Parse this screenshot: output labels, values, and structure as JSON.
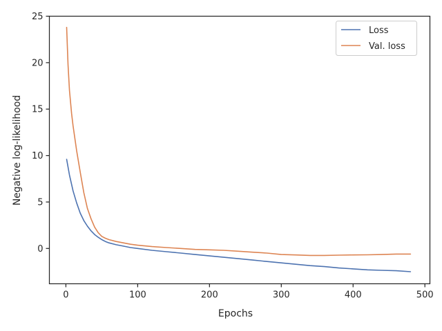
{
  "chart_data": {
    "type": "line",
    "title": "",
    "xlabel": "Epochs",
    "ylabel": "Negative log-likelihood",
    "xlim": [
      -23,
      507
    ],
    "ylim": [
      -3.8,
      25
    ],
    "xticks": [
      0,
      100,
      200,
      300,
      400,
      500
    ],
    "yticks": [
      0,
      5,
      10,
      15,
      20,
      25
    ],
    "grid": false,
    "legend": "top-right",
    "series": [
      {
        "name": "Loss",
        "color": "#4c72b0",
        "x": [
          1,
          5,
          10,
          15,
          20,
          25,
          30,
          35,
          40,
          45,
          50,
          55,
          60,
          70,
          80,
          90,
          100,
          120,
          140,
          160,
          180,
          200,
          220,
          240,
          260,
          280,
          300,
          320,
          340,
          360,
          380,
          400,
          420,
          440,
          460,
          480
        ],
        "y": [
          9.6,
          7.9,
          6.2,
          4.9,
          3.8,
          3.0,
          2.4,
          1.9,
          1.5,
          1.2,
          0.95,
          0.75,
          0.6,
          0.4,
          0.25,
          0.1,
          0.0,
          -0.2,
          -0.35,
          -0.5,
          -0.65,
          -0.8,
          -0.95,
          -1.1,
          -1.25,
          -1.4,
          -1.55,
          -1.7,
          -1.85,
          -1.95,
          -2.1,
          -2.2,
          -2.3,
          -2.35,
          -2.4,
          -2.5
        ]
      },
      {
        "name": "Val. loss",
        "color": "#dd8452",
        "x": [
          1,
          3,
          5,
          8,
          10,
          15,
          20,
          25,
          30,
          35,
          40,
          45,
          50,
          55,
          60,
          70,
          80,
          90,
          100,
          120,
          140,
          160,
          180,
          200,
          220,
          240,
          260,
          280,
          300,
          320,
          340,
          360,
          380,
          400,
          420,
          440,
          460,
          480
        ],
        "y": [
          23.8,
          19.8,
          17.0,
          14.5,
          13.2,
          10.5,
          8.2,
          6.0,
          4.3,
          3.2,
          2.3,
          1.7,
          1.3,
          1.1,
          0.95,
          0.75,
          0.6,
          0.45,
          0.35,
          0.2,
          0.1,
          0.0,
          -0.1,
          -0.15,
          -0.2,
          -0.3,
          -0.4,
          -0.5,
          -0.65,
          -0.7,
          -0.75,
          -0.75,
          -0.72,
          -0.7,
          -0.68,
          -0.65,
          -0.6,
          -0.6
        ]
      }
    ]
  }
}
